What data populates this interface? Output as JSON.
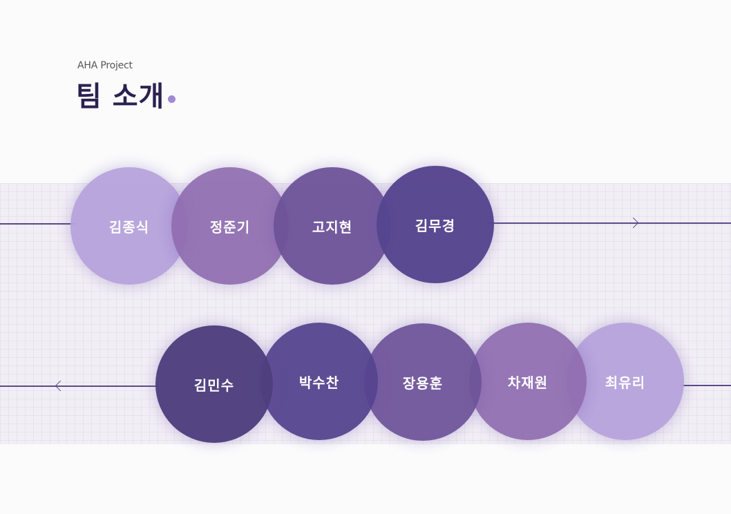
{
  "header": {
    "subtitle": "AHA Project",
    "title": "팀 소개"
  },
  "colors": {
    "title": "#2b2150",
    "accent_dot": "#a08ad2",
    "line": "#5a4a8a",
    "light": "#b7a3dc",
    "medium": "#8f6cb0",
    "mid_dark": "#6d5399",
    "dark": "#56458f",
    "darkest": "#4f3f7f"
  },
  "rows": [
    {
      "direction": "right",
      "members": [
        {
          "name": "김종식",
          "color": "#b7a3dc"
        },
        {
          "name": "정준기",
          "color": "#8f6cb0"
        },
        {
          "name": "고지현",
          "color": "#6d5399"
        },
        {
          "name": "김무경",
          "color": "#56458f"
        }
      ]
    },
    {
      "direction": "left",
      "members": [
        {
          "name": "김민수",
          "color": "#4f3f7f"
        },
        {
          "name": "박수찬",
          "color": "#56458f"
        },
        {
          "name": "장용훈",
          "color": "#6d5399"
        },
        {
          "name": "차재원",
          "color": "#8f6cb0"
        },
        {
          "name": "최유리",
          "color": "#b7a3dc"
        }
      ]
    }
  ]
}
